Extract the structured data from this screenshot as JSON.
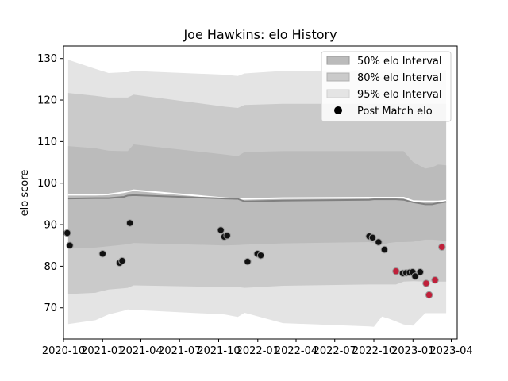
{
  "chart_data": {
    "type": "scatter",
    "title": "Joe Hawkins: elo History",
    "xlabel": "",
    "ylabel": "elo score",
    "xlim": [
      "2020-10-01",
      "2023-04-15"
    ],
    "ylim": [
      62.5,
      133
    ],
    "x_ticks": [
      "2020-10",
      "2021-01",
      "2021-04",
      "2021-07",
      "2021-10",
      "2022-01",
      "2022-04",
      "2022-07",
      "2022-10",
      "2023-01",
      "2023-04"
    ],
    "x_tick_dates": [
      "2020-10-01",
      "2021-01-01",
      "2021-04-01",
      "2021-07-01",
      "2021-10-01",
      "2022-01-01",
      "2022-04-01",
      "2022-07-01",
      "2022-10-01",
      "2023-01-01",
      "2023-04-01"
    ],
    "y_ticks": [
      70,
      80,
      90,
      100,
      110,
      120,
      130
    ],
    "legend": {
      "position": "top-right",
      "entries": [
        {
          "label": "50% elo Interval",
          "kind": "patch",
          "color": "#b0b0b0"
        },
        {
          "label": "80% elo Interval",
          "kind": "patch",
          "color": "#c8c8c8"
        },
        {
          "label": "95% elo Interval",
          "kind": "patch",
          "color": "#e4e4e4"
        },
        {
          "label": "Post Match elo",
          "kind": "marker",
          "color": "#000000"
        }
      ]
    },
    "colors": {
      "band95": "#e4e4e4",
      "band80": "#cacaca",
      "band50": "#bbbbbb",
      "mean_line": "#808080",
      "baseline_line": "#ffffff",
      "point_dark": "#111111",
      "point_red": "#c0203a",
      "point_edge": "#9a9a9a"
    },
    "bands": {
      "x": [
        "2020-10-12",
        "2020-12-15",
        "2021-01-15",
        "2021-02-20",
        "2021-03-01",
        "2021-03-15",
        "2021-10-15",
        "2021-11-15",
        "2021-12-01",
        "2022-03-01",
        "2022-09-20",
        "2022-10-01",
        "2022-10-20",
        "2022-11-05",
        "2022-11-22",
        "2022-12-10",
        "2023-01-01",
        "2023-01-30",
        "2023-02-15",
        "2023-03-01",
        "2023-03-20"
      ],
      "upper95": [
        129.7,
        127.5,
        126.5,
        126.7,
        126.7,
        127.0,
        126.1,
        125.8,
        126.4,
        127.0,
        127.2,
        127.2,
        127.2,
        127.2,
        127.2,
        127.2,
        127.2,
        127.2,
        127.2,
        127.2,
        127.2
      ],
      "upper80": [
        121.7,
        121.0,
        120.6,
        120.6,
        120.6,
        121.3,
        118.4,
        118.1,
        118.8,
        119.1,
        119.1,
        119.1,
        119.1,
        119.1,
        119.1,
        119.1,
        119.1,
        119.1,
        119.1,
        119.1,
        119.1
      ],
      "upper50": [
        108.9,
        108.4,
        107.8,
        107.7,
        107.7,
        109.3,
        106.9,
        106.5,
        107.5,
        107.7,
        107.7,
        107.7,
        107.7,
        107.7,
        107.7,
        107.7,
        105.1,
        103.5,
        103.8,
        104.5,
        104.3
      ],
      "mean": [
        96.3,
        96.4,
        96.4,
        96.7,
        97.0,
        97.1,
        96.3,
        96.2,
        95.6,
        95.8,
        96.0,
        96.1,
        96.1,
        96.1,
        96.1,
        96.0,
        95.4,
        94.9,
        94.9,
        95.2,
        95.5
      ],
      "baseline": [
        97.2,
        97.2,
        97.3,
        97.8,
        98.0,
        98.3,
        96.4,
        96.2,
        96.2,
        96.4,
        96.5,
        96.5,
        96.5,
        96.5,
        96.5,
        96.5,
        95.7,
        95.6,
        95.6,
        95.6,
        95.8
      ],
      "lower50": [
        84.2,
        84.5,
        84.8,
        85.2,
        85.3,
        85.6,
        85.0,
        85.1,
        85.2,
        85.5,
        85.8,
        85.6,
        85.2,
        85.6,
        85.8,
        85.8,
        85.9,
        86.4,
        86.4,
        86.3,
        86.1
      ],
      "lower80": [
        73.3,
        73.6,
        74.4,
        74.7,
        74.8,
        75.4,
        75.0,
        75.0,
        74.8,
        75.3,
        75.6,
        75.6,
        75.6,
        75.6,
        75.6,
        76.3,
        76.4,
        76.3,
        76.3,
        76.3,
        76.3
      ],
      "lower95": [
        66.1,
        67.0,
        68.4,
        69.3,
        69.6,
        69.5,
        68.4,
        67.8,
        68.8,
        66.3,
        65.5,
        65.4,
        67.9,
        67.4,
        66.7,
        66.0,
        65.7,
        68.7,
        68.7,
        68.7,
        68.7
      ]
    },
    "points": [
      {
        "x": "2020-10-10",
        "y": 88.0,
        "color": "dark"
      },
      {
        "x": "2020-10-16",
        "y": 85.0,
        "color": "dark"
      },
      {
        "x": "2021-01-01",
        "y": 83.0,
        "color": "dark"
      },
      {
        "x": "2021-02-10",
        "y": 80.8,
        "color": "dark"
      },
      {
        "x": "2021-02-16",
        "y": 81.3,
        "color": "dark"
      },
      {
        "x": "2021-03-06",
        "y": 90.4,
        "color": "dark"
      },
      {
        "x": "2021-10-06",
        "y": 88.7,
        "color": "dark"
      },
      {
        "x": "2021-10-14",
        "y": 87.1,
        "color": "dark"
      },
      {
        "x": "2021-10-21",
        "y": 87.4,
        "color": "dark"
      },
      {
        "x": "2021-12-08",
        "y": 81.1,
        "color": "dark"
      },
      {
        "x": "2021-12-31",
        "y": 83.0,
        "color": "dark"
      },
      {
        "x": "2022-01-08",
        "y": 82.6,
        "color": "dark"
      },
      {
        "x": "2022-09-20",
        "y": 87.2,
        "color": "dark"
      },
      {
        "x": "2022-09-28",
        "y": 86.9,
        "color": "dark"
      },
      {
        "x": "2022-10-12",
        "y": 85.8,
        "color": "dark"
      },
      {
        "x": "2022-10-26",
        "y": 84.0,
        "color": "dark"
      },
      {
        "x": "2022-11-22",
        "y": 78.8,
        "color": "red"
      },
      {
        "x": "2022-12-08",
        "y": 78.3,
        "color": "dark"
      },
      {
        "x": "2022-12-16",
        "y": 78.4,
        "color": "dark"
      },
      {
        "x": "2022-12-24",
        "y": 78.5,
        "color": "dark"
      },
      {
        "x": "2022-12-31",
        "y": 78.6,
        "color": "dark"
      },
      {
        "x": "2023-01-06",
        "y": 77.6,
        "color": "dark"
      },
      {
        "x": "2023-01-18",
        "y": 78.6,
        "color": "dark"
      },
      {
        "x": "2023-02-01",
        "y": 75.9,
        "color": "red"
      },
      {
        "x": "2023-02-08",
        "y": 73.1,
        "color": "red"
      },
      {
        "x": "2023-02-22",
        "y": 76.7,
        "color": "red"
      },
      {
        "x": "2023-03-10",
        "y": 84.6,
        "color": "red"
      }
    ]
  }
}
